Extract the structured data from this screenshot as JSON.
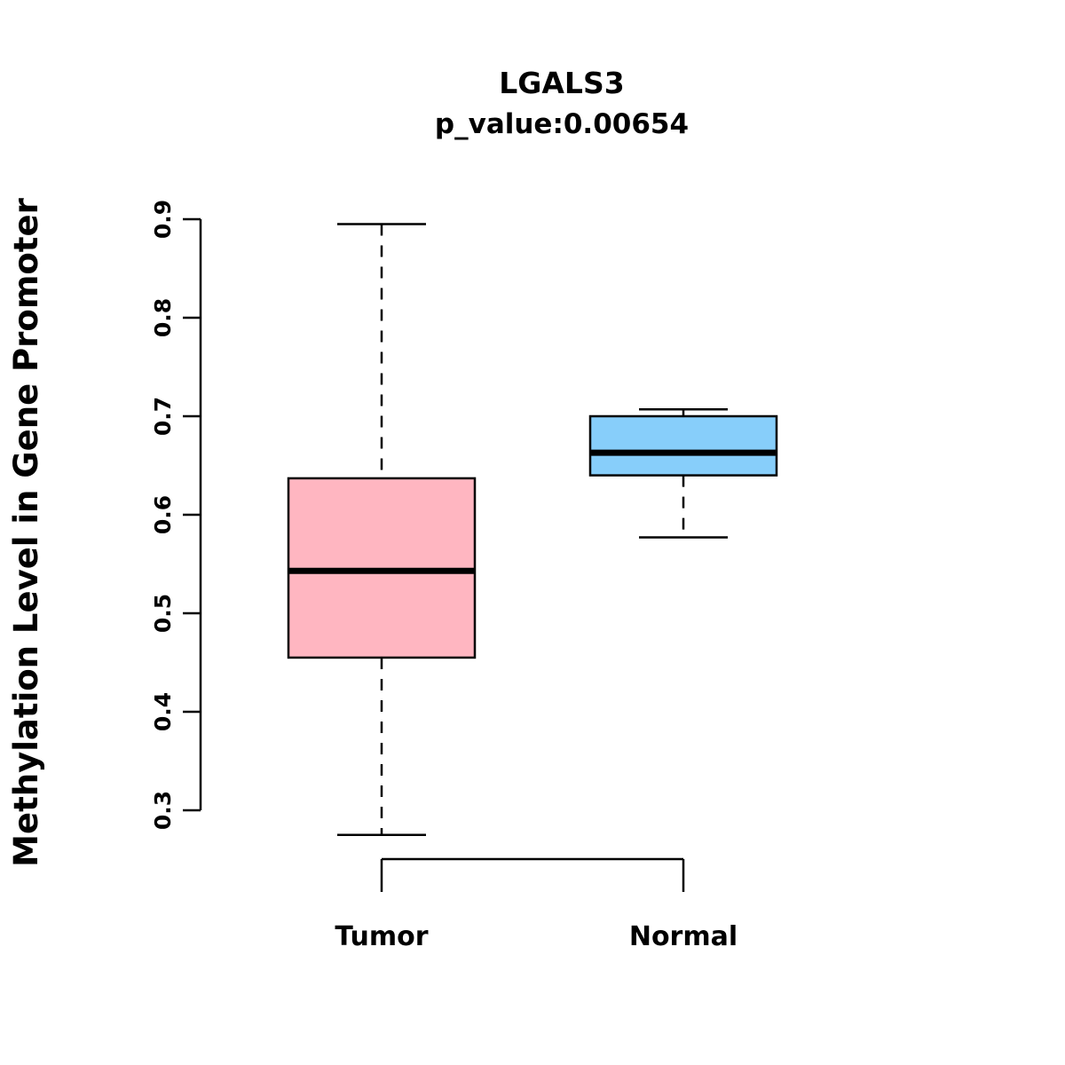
{
  "chart_data": {
    "type": "boxplot",
    "title": "LGALS3",
    "subtitle": "p_value:0.00654",
    "ylabel": "Methylation Level in Gene Promoter",
    "xlabel": "",
    "ylim": [
      0.3,
      0.9
    ],
    "yticks": [
      0.3,
      0.4,
      0.5,
      0.6,
      0.7,
      0.8,
      0.9
    ],
    "grid": false,
    "legend": "none",
    "categories": [
      "Tumor",
      "Normal"
    ],
    "series": [
      {
        "name": "Tumor",
        "color": "#FFB6C1",
        "lower_whisker": 0.275,
        "q1": 0.455,
        "median": 0.543,
        "q3": 0.637,
        "upper_whisker": 0.895
      },
      {
        "name": "Normal",
        "color": "#87CEFA",
        "lower_whisker": 0.577,
        "q1": 0.64,
        "median": 0.663,
        "q3": 0.7,
        "upper_whisker": 0.707
      }
    ]
  },
  "colors": {
    "stroke": "#000000",
    "background": "#FFFFFF"
  }
}
